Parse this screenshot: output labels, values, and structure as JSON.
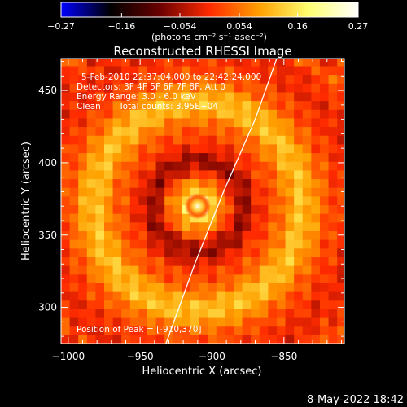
{
  "chart_data": {
    "type": "heatmap",
    "title": "Reconstructed RHESSI Image",
    "xlabel": "Heliocentric X (arcsec)",
    "ylabel": "Heliocentric Y (arcsec)",
    "xlim": [
      -1005,
      -808
    ],
    "ylim": [
      275,
      472
    ],
    "xticks": [
      -1000,
      -950,
      -900,
      -850
    ],
    "xtick_labels": [
      "−1000",
      "−950",
      "−900",
      "−850"
    ],
    "yticks": [
      300,
      350,
      400,
      450
    ],
    "ytick_labels": [
      "300",
      "350",
      "400",
      "450"
    ],
    "colorbar": {
      "min": -0.27,
      "max": 0.27,
      "ticks": [
        -0.27,
        -0.16,
        -0.054,
        0.054,
        0.16,
        0.27
      ],
      "tick_labels": [
        "−0.27",
        "−0.16",
        "−0.054",
        "0.054",
        "0.16",
        "0.27"
      ],
      "units": "(photons cm⁻² s⁻¹ asec⁻²)",
      "colormap": [
        "#0000ff",
        "#000000",
        "#6a0000",
        "#ff2a00",
        "#ffa000",
        "#ffff70",
        "#ffffff"
      ]
    },
    "annotations": [
      "5-Feb-2010 22:37:04.000 to 22:42:24.000",
      "Detectors: 3F 4F 5F 6F 7F 8F, Att 0",
      "Energy Range: 3.0 - 6.0 keV",
      "Clean",
      "Total counts: 3.95E+04"
    ],
    "peak_label": "Position of Peak = [-910,370]",
    "peak": {
      "x": -910,
      "y": 370
    },
    "limb_curve": [
      [
        -932,
        275
      ],
      [
        -912,
        330
      ],
      [
        -892,
        380
      ],
      [
        -870,
        430
      ],
      [
        -855,
        472
      ]
    ]
  },
  "footer": {
    "timestamp": "8-May-2022 18:42"
  }
}
